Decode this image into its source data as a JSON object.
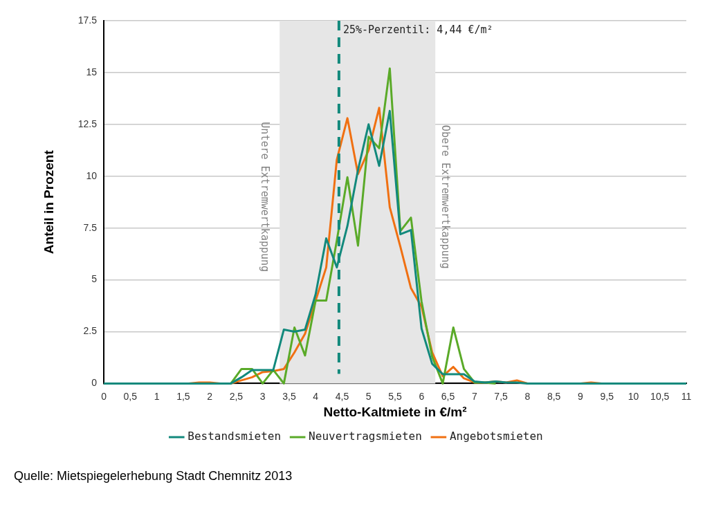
{
  "chart_data": {
    "type": "line",
    "xlabel": "Netto-Kaltmiete in €/m²",
    "ylabel": "Anteil in Prozent",
    "x": [
      0,
      0.2,
      0.4,
      0.6,
      0.8,
      1,
      1.2,
      1.4,
      1.6,
      1.8,
      2,
      2.2,
      2.4,
      2.6,
      2.8,
      3,
      3.2,
      3.4,
      3.6,
      3.8,
      4,
      4.2,
      4.4,
      4.6,
      4.8,
      5,
      5.2,
      5.4,
      5.6,
      5.8,
      6,
      6.2,
      6.4,
      6.6,
      6.8,
      7,
      7.2,
      7.4,
      7.6,
      7.8,
      8,
      8.2,
      8.4,
      8.6,
      8.8,
      9,
      9.2,
      9.4,
      9.6,
      9.8,
      10,
      10.2,
      10.4,
      10.6,
      10.8,
      11
    ],
    "series": [
      {
        "name": "Bestandsmieten",
        "color": "#12897c",
        "values": [
          0,
          0,
          0,
          0,
          0,
          0,
          0,
          0,
          0,
          0,
          0,
          0,
          0,
          0.3,
          0.65,
          0.65,
          0.65,
          2.6,
          2.5,
          2.6,
          4.3,
          7.0,
          5.6,
          7.6,
          10.3,
          12.5,
          10.5,
          13.15,
          7.2,
          7.4,
          2.65,
          0.95,
          0.45,
          0.45,
          0.45,
          0.1,
          0.05,
          0.1,
          0.05,
          0.05,
          0,
          0,
          0,
          0,
          0,
          0,
          0,
          0,
          0,
          0,
          0,
          0,
          0,
          0,
          0,
          0
        ]
      },
      {
        "name": "Neuvertragsmieten",
        "color": "#5aaa28",
        "values": [
          null,
          null,
          null,
          null,
          null,
          null,
          null,
          null,
          null,
          null,
          null,
          null,
          0,
          0.7,
          0.7,
          0,
          0.65,
          0,
          2.7,
          1.35,
          4.0,
          4.0,
          6.9,
          9.95,
          6.65,
          11.9,
          11.35,
          15.2,
          7.35,
          8.0,
          3.95,
          1.3,
          0,
          2.7,
          0.7,
          0.05,
          0.05,
          0,
          null,
          null,
          null,
          null,
          null,
          null,
          null,
          null,
          null,
          null,
          null,
          null,
          null,
          null,
          null,
          null,
          null,
          null
        ]
      },
      {
        "name": "Angebotsmieten",
        "color": "#f07012",
        "values": [
          null,
          null,
          null,
          null,
          null,
          null,
          null,
          0,
          0,
          0.05,
          0.05,
          0,
          0,
          0.15,
          0.3,
          0.55,
          0.6,
          0.7,
          1.5,
          2.4,
          4.0,
          5.6,
          10.8,
          12.8,
          10.1,
          11.25,
          13.3,
          8.5,
          6.6,
          4.6,
          3.7,
          1.5,
          0.35,
          0.8,
          0.25,
          0.05,
          0.05,
          0.1,
          0.05,
          0.15,
          0,
          0,
          0,
          0,
          0,
          0,
          0.05,
          0,
          0,
          null,
          null,
          null,
          null,
          null,
          null,
          null
        ]
      }
    ],
    "xlim": [
      0,
      11
    ],
    "xticks": [
      0,
      {
        "value": 0.5,
        "label": "0,5"
      },
      1,
      {
        "value": 1.5,
        "label": "1,5"
      },
      2,
      {
        "value": 2.5,
        "label": "2,5"
      },
      3,
      {
        "value": 3.5,
        "label": "3,5"
      },
      4,
      {
        "value": 4.5,
        "label": "4,5"
      },
      5,
      {
        "value": 5.5,
        "label": "5,5"
      },
      6,
      {
        "value": 6.5,
        "label": "6,5"
      },
      7,
      {
        "value": 7.5,
        "label": "7,5"
      },
      8,
      {
        "value": 8.5,
        "label": "8,5"
      },
      9,
      {
        "value": 9.5,
        "label": "9,5"
      },
      10,
      {
        "value": 10.5,
        "label": "10,5"
      },
      11
    ],
    "ylim": [
      0,
      17.5
    ],
    "yticks": [
      0,
      2.5,
      5,
      7.5,
      10,
      12.5,
      15,
      17.5
    ],
    "grid": "y",
    "legend": "bottom",
    "marker": "none",
    "line_style": "solid",
    "bands": [
      {
        "axis": "x",
        "from": 3.32,
        "to": 6.26,
        "color": "#e6e6e6"
      }
    ],
    "ref_lines": [
      {
        "axis": "x",
        "value": 4.44,
        "label": "25%-Perzentil: 4,44 €/m²",
        "color": "#12897c",
        "line_style": "dashed"
      }
    ],
    "annotations": [
      {
        "text": "Untere Extremwertkappung",
        "x": 3.32,
        "y": 9
      },
      {
        "text": "Obere Extremwertkappung",
        "x": 6.26,
        "y": 9
      },
      "Quelle: Mietspiegelerhebung Stadt Chemnitz 2013"
    ]
  }
}
